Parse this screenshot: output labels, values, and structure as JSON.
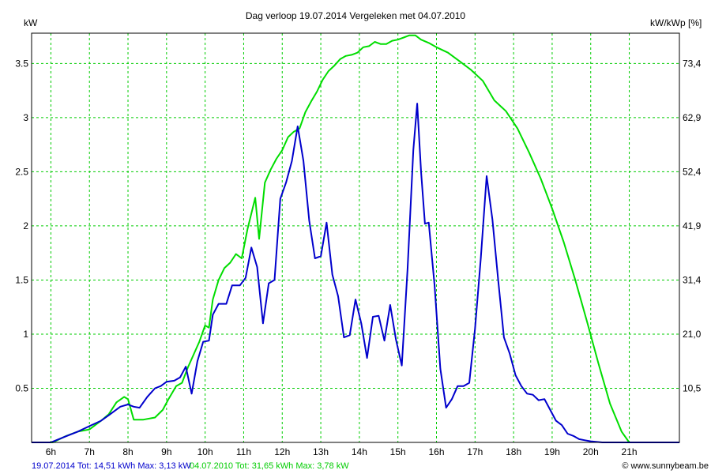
{
  "chart_data": {
    "type": "line",
    "title": "Dag  verloop 19.07.2014   Vergeleken met 04.07.2010",
    "ylabel_left": "kW",
    "ylabel_right": "kW/kWp [%]",
    "xlim": [
      5.5,
      22.3
    ],
    "ylim": [
      0,
      3.78
    ],
    "grid": true,
    "x_ticks": [
      {
        "v": 6,
        "label": "6h"
      },
      {
        "v": 7,
        "label": "7h"
      },
      {
        "v": 8,
        "label": "8h"
      },
      {
        "v": 9,
        "label": "9h"
      },
      {
        "v": 10,
        "label": "10h"
      },
      {
        "v": 11,
        "label": "11h"
      },
      {
        "v": 12,
        "label": "12h"
      },
      {
        "v": 13,
        "label": "13h"
      },
      {
        "v": 14,
        "label": "14h"
      },
      {
        "v": 15,
        "label": "15h"
      },
      {
        "v": 16,
        "label": "16h"
      },
      {
        "v": 17,
        "label": "17h"
      },
      {
        "v": 18,
        "label": "18h"
      },
      {
        "v": 19,
        "label": "19h"
      },
      {
        "v": 20,
        "label": "20h"
      },
      {
        "v": 21,
        "label": "21h"
      }
    ],
    "y_ticks_left": [
      {
        "v": 0.5,
        "label": "0.5"
      },
      {
        "v": 1,
        "label": "1"
      },
      {
        "v": 1.5,
        "label": "1.5"
      },
      {
        "v": 2,
        "label": "2"
      },
      {
        "v": 2.5,
        "label": "2.5"
      },
      {
        "v": 3,
        "label": "3"
      },
      {
        "v": 3.5,
        "label": "3.5"
      }
    ],
    "y_ticks_right": [
      {
        "v": 0.5,
        "label": "10,5"
      },
      {
        "v": 1,
        "label": "21,0"
      },
      {
        "v": 1.5,
        "label": "31,4"
      },
      {
        "v": 2,
        "label": "41,9"
      },
      {
        "v": 2.5,
        "label": "52,4"
      },
      {
        "v": 3,
        "label": "62,9"
      },
      {
        "v": 3.5,
        "label": "73,4"
      }
    ],
    "series": [
      {
        "name": "19.07.2014",
        "color": "#0000cc",
        "points": [
          [
            5.5,
            0
          ],
          [
            6.0,
            0
          ],
          [
            6.35,
            0.05
          ],
          [
            6.7,
            0.1
          ],
          [
            7.0,
            0.15
          ],
          [
            7.3,
            0.2
          ],
          [
            7.5,
            0.25
          ],
          [
            7.8,
            0.33
          ],
          [
            8.0,
            0.35
          ],
          [
            8.15,
            0.33
          ],
          [
            8.3,
            0.32
          ],
          [
            8.5,
            0.42
          ],
          [
            8.7,
            0.5
          ],
          [
            8.85,
            0.52
          ],
          [
            9.0,
            0.56
          ],
          [
            9.2,
            0.57
          ],
          [
            9.35,
            0.6
          ],
          [
            9.5,
            0.7
          ],
          [
            9.65,
            0.45
          ],
          [
            9.8,
            0.75
          ],
          [
            9.95,
            0.93
          ],
          [
            10.1,
            0.94
          ],
          [
            10.2,
            1.18
          ],
          [
            10.35,
            1.28
          ],
          [
            10.55,
            1.28
          ],
          [
            10.7,
            1.45
          ],
          [
            10.9,
            1.45
          ],
          [
            11.05,
            1.52
          ],
          [
            11.2,
            1.8
          ],
          [
            11.35,
            1.62
          ],
          [
            11.5,
            1.1
          ],
          [
            11.65,
            1.47
          ],
          [
            11.8,
            1.5
          ],
          [
            11.95,
            2.25
          ],
          [
            12.1,
            2.4
          ],
          [
            12.25,
            2.6
          ],
          [
            12.4,
            2.92
          ],
          [
            12.55,
            2.6
          ],
          [
            12.7,
            2.05
          ],
          [
            12.85,
            1.7
          ],
          [
            13.0,
            1.72
          ],
          [
            13.15,
            2.03
          ],
          [
            13.3,
            1.55
          ],
          [
            13.45,
            1.35
          ],
          [
            13.6,
            0.97
          ],
          [
            13.75,
            0.99
          ],
          [
            13.9,
            1.32
          ],
          [
            14.05,
            1.1
          ],
          [
            14.2,
            0.78
          ],
          [
            14.35,
            1.16
          ],
          [
            14.5,
            1.17
          ],
          [
            14.65,
            0.94
          ],
          [
            14.8,
            1.27
          ],
          [
            14.95,
            0.95
          ],
          [
            15.1,
            0.71
          ],
          [
            15.25,
            1.6
          ],
          [
            15.4,
            2.7
          ],
          [
            15.5,
            3.13
          ],
          [
            15.6,
            2.5
          ],
          [
            15.7,
            2.02
          ],
          [
            15.8,
            2.03
          ],
          [
            15.95,
            1.45
          ],
          [
            16.1,
            0.68
          ],
          [
            16.25,
            0.32
          ],
          [
            16.4,
            0.4
          ],
          [
            16.55,
            0.52
          ],
          [
            16.7,
            0.52
          ],
          [
            16.85,
            0.55
          ],
          [
            17.0,
            1.05
          ],
          [
            17.15,
            1.7
          ],
          [
            17.3,
            2.46
          ],
          [
            17.45,
            2.06
          ],
          [
            17.6,
            1.5
          ],
          [
            17.75,
            0.97
          ],
          [
            17.9,
            0.82
          ],
          [
            18.05,
            0.62
          ],
          [
            18.2,
            0.52
          ],
          [
            18.35,
            0.45
          ],
          [
            18.5,
            0.44
          ],
          [
            18.65,
            0.39
          ],
          [
            18.8,
            0.4
          ],
          [
            18.95,
            0.3
          ],
          [
            19.1,
            0.2
          ],
          [
            19.25,
            0.16
          ],
          [
            19.4,
            0.08
          ],
          [
            19.55,
            0.06
          ],
          [
            19.7,
            0.03
          ],
          [
            19.85,
            0.02
          ],
          [
            20.0,
            0.01
          ],
          [
            20.3,
            0
          ],
          [
            22.3,
            0
          ]
        ]
      },
      {
        "name": "04.07.2010",
        "color": "#00dd00",
        "points": [
          [
            5.5,
            0
          ],
          [
            6.05,
            0
          ],
          [
            6.4,
            0.06
          ],
          [
            6.7,
            0.1
          ],
          [
            7.0,
            0.12
          ],
          [
            7.3,
            0.2
          ],
          [
            7.5,
            0.26
          ],
          [
            7.7,
            0.37
          ],
          [
            7.9,
            0.42
          ],
          [
            8.0,
            0.4
          ],
          [
            8.15,
            0.21
          ],
          [
            8.4,
            0.21
          ],
          [
            8.7,
            0.23
          ],
          [
            8.9,
            0.3
          ],
          [
            9.05,
            0.4
          ],
          [
            9.25,
            0.52
          ],
          [
            9.4,
            0.55
          ],
          [
            9.55,
            0.69
          ],
          [
            9.7,
            0.81
          ],
          [
            9.85,
            0.93
          ],
          [
            10.0,
            1.08
          ],
          [
            10.1,
            1.06
          ],
          [
            10.2,
            1.32
          ],
          [
            10.35,
            1.5
          ],
          [
            10.5,
            1.61
          ],
          [
            10.65,
            1.66
          ],
          [
            10.8,
            1.74
          ],
          [
            10.95,
            1.7
          ],
          [
            11.1,
            1.97
          ],
          [
            11.3,
            2.26
          ],
          [
            11.4,
            1.88
          ],
          [
            11.55,
            2.4
          ],
          [
            11.7,
            2.52
          ],
          [
            11.85,
            2.62
          ],
          [
            12.0,
            2.7
          ],
          [
            12.15,
            2.82
          ],
          [
            12.3,
            2.87
          ],
          [
            12.45,
            2.9
          ],
          [
            12.6,
            3.05
          ],
          [
            12.75,
            3.15
          ],
          [
            12.9,
            3.24
          ],
          [
            13.05,
            3.35
          ],
          [
            13.2,
            3.43
          ],
          [
            13.35,
            3.48
          ],
          [
            13.5,
            3.54
          ],
          [
            13.65,
            3.57
          ],
          [
            13.8,
            3.58
          ],
          [
            13.95,
            3.6
          ],
          [
            14.1,
            3.65
          ],
          [
            14.25,
            3.66
          ],
          [
            14.4,
            3.7
          ],
          [
            14.55,
            3.68
          ],
          [
            14.7,
            3.68
          ],
          [
            14.85,
            3.71
          ],
          [
            15.0,
            3.72
          ],
          [
            15.15,
            3.74
          ],
          [
            15.3,
            3.76
          ],
          [
            15.45,
            3.76
          ],
          [
            15.6,
            3.72
          ],
          [
            15.8,
            3.69
          ],
          [
            16.0,
            3.65
          ],
          [
            16.3,
            3.6
          ],
          [
            16.6,
            3.52
          ],
          [
            16.9,
            3.44
          ],
          [
            17.2,
            3.34
          ],
          [
            17.5,
            3.16
          ],
          [
            17.8,
            3.06
          ],
          [
            18.1,
            2.9
          ],
          [
            18.4,
            2.68
          ],
          [
            18.7,
            2.44
          ],
          [
            19.0,
            2.16
          ],
          [
            19.3,
            1.85
          ],
          [
            19.6,
            1.5
          ],
          [
            19.9,
            1.12
          ],
          [
            20.2,
            0.73
          ],
          [
            20.5,
            0.36
          ],
          [
            20.8,
            0.1
          ],
          [
            21.0,
            0
          ],
          [
            22.3,
            0
          ]
        ]
      }
    ]
  },
  "footer": {
    "legend1_text": "19.07.2014 Tot: 14,51 kWh Max: 3,13 kW",
    "legend2_text": "04.07.2010 Tot: 31,65 kWh Max: 3,78 kW",
    "credit": "© www.sunnybeam.be"
  }
}
